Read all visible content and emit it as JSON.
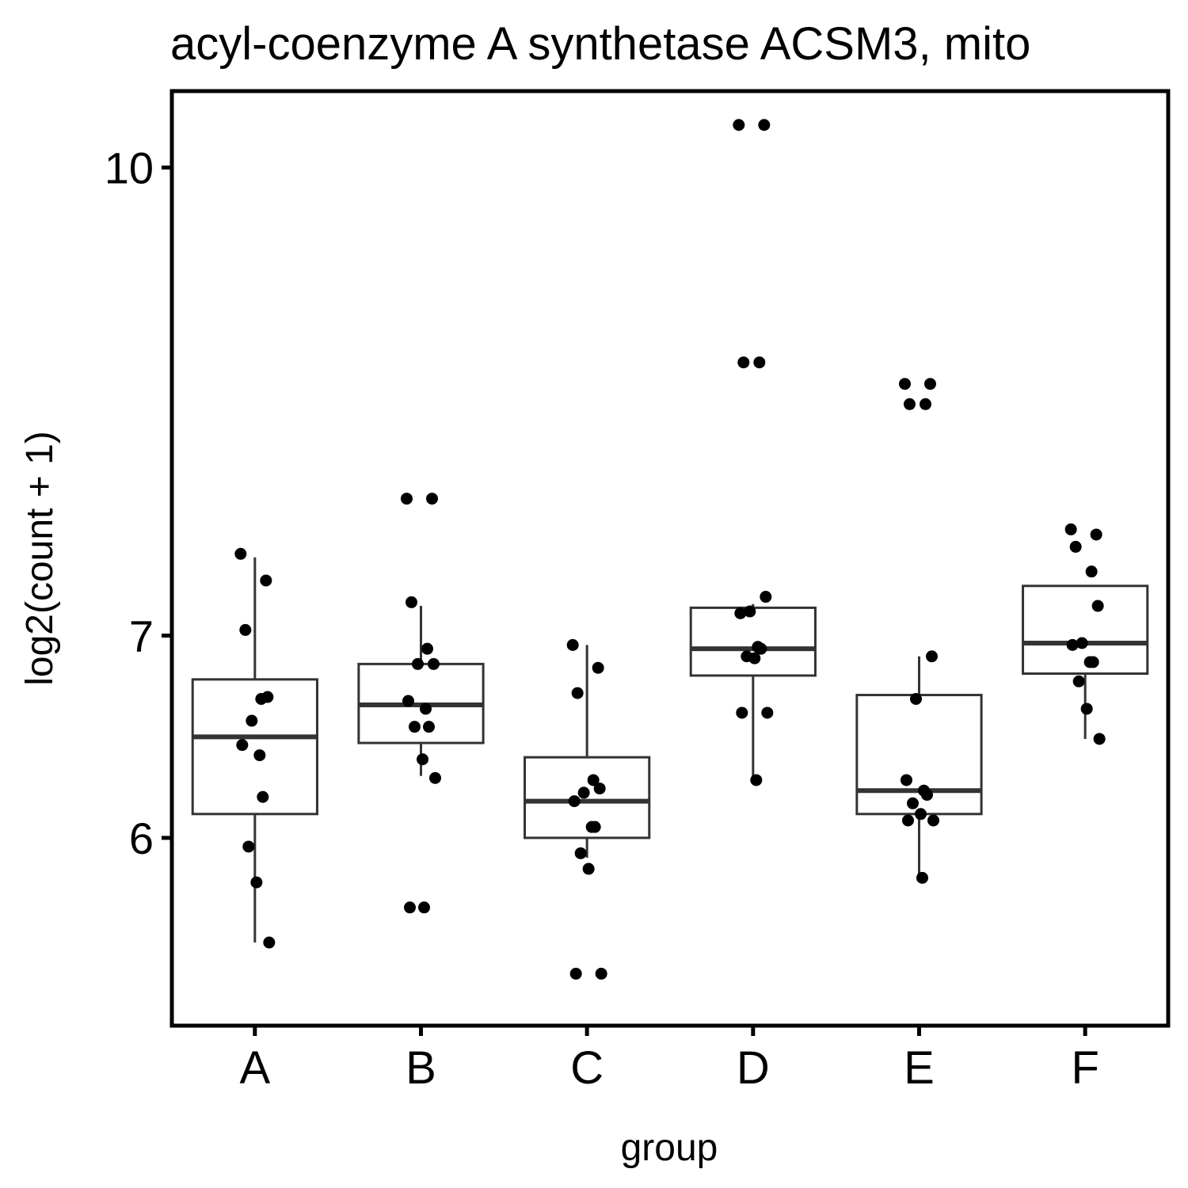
{
  "chart_data": {
    "type": "box",
    "title": "acyl-coenzyme A synthetase ACSM3, mito",
    "xlabel": "group",
    "ylabel": "log2(count + 1)",
    "y_scale": "log2(count + 1)",
    "yticks": [
      {
        "value": 10,
        "label": "10"
      },
      {
        "value": 7,
        "label": "7"
      },
      {
        "value": 6,
        "label": "6"
      }
    ],
    "ylim": [
      5.2,
      10.6
    ],
    "categories": [
      "A",
      "B",
      "C",
      "D",
      "E",
      "F"
    ],
    "boxes": [
      {
        "group": "A",
        "whisker_low": 5.54,
        "q1": 6.11,
        "median": 6.48,
        "q3": 6.77,
        "whisker_high": 7.43
      },
      {
        "group": "B",
        "whisker_low": 6.29,
        "q1": 6.45,
        "median": 6.64,
        "q3": 6.85,
        "whisker_high": 7.16
      },
      {
        "group": "C",
        "whisker_low": 5.91,
        "q1": 6.0,
        "median": 6.17,
        "q3": 6.38,
        "whisker_high": 6.95
      },
      {
        "group": "D",
        "whisker_low": 6.27,
        "q1": 6.79,
        "median": 6.93,
        "q3": 7.15,
        "whisker_high": 7.17
      },
      {
        "group": "E",
        "whisker_low": 5.82,
        "q1": 6.11,
        "median": 6.22,
        "q3": 6.69,
        "whisker_high": 6.89
      },
      {
        "group": "F",
        "whisker_low": 6.47,
        "q1": 6.8,
        "median": 6.96,
        "q3": 7.27,
        "whisker_high": 7.27
      }
    ],
    "points": [
      {
        "group": "A",
        "values": [
          7.45,
          7.3,
          7.03,
          6.67,
          6.68,
          6.56,
          6.44,
          6.39,
          6.19,
          5.96,
          5.8,
          5.54
        ]
      },
      {
        "group": "B",
        "values": [
          7.77,
          7.77,
          7.18,
          6.93,
          6.85,
          6.85,
          6.66,
          6.62,
          6.53,
          6.53,
          6.37,
          6.28,
          5.69,
          5.69
        ]
      },
      {
        "group": "C",
        "values": [
          6.95,
          6.83,
          6.7,
          6.27,
          6.23,
          6.21,
          6.17,
          6.05,
          6.05,
          5.93,
          5.86,
          5.41,
          5.41
        ]
      },
      {
        "group": "D",
        "values": [
          10.33,
          10.33,
          8.62,
          8.62,
          7.21,
          7.13,
          7.12,
          6.94,
          6.93,
          6.89,
          6.88,
          6.6,
          6.6,
          6.27
        ]
      },
      {
        "group": "E",
        "values": [
          8.48,
          8.48,
          8.35,
          8.35,
          6.89,
          6.67,
          6.27,
          6.22,
          6.2,
          6.16,
          6.11,
          6.08,
          6.08,
          5.82
        ]
      },
      {
        "group": "F",
        "values": [
          7.59,
          7.56,
          7.49,
          7.35,
          7.16,
          6.96,
          6.95,
          6.86,
          6.86,
          6.76,
          6.62,
          6.47
        ]
      }
    ],
    "grid": false,
    "legend": "none"
  }
}
